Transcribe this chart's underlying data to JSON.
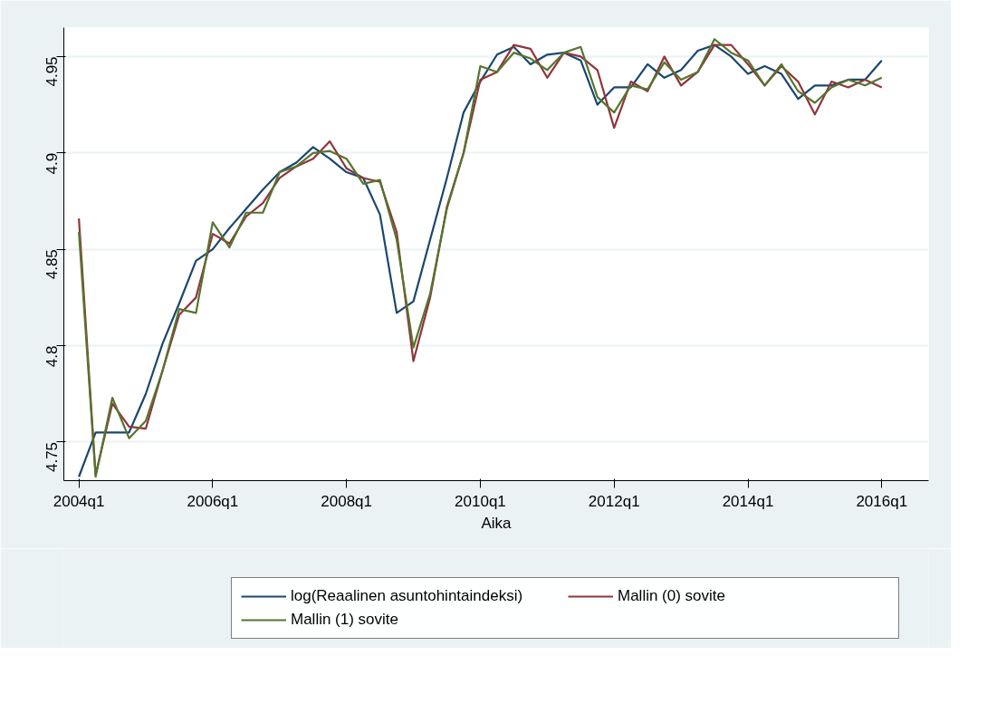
{
  "chart_data": {
    "type": "line",
    "xlabel": "Aika",
    "categories": [
      "2004q1",
      null,
      null,
      null,
      null,
      null,
      null,
      null,
      "2006q1",
      null,
      null,
      null,
      null,
      null,
      null,
      null,
      "2008q1",
      null,
      null,
      null,
      null,
      null,
      null,
      null,
      "2010q1",
      null,
      null,
      null,
      null,
      null,
      null,
      null,
      "2012q1",
      null,
      null,
      null,
      null,
      null,
      null,
      null,
      "2014q1",
      null,
      null,
      null,
      null,
      null,
      null,
      null,
      "2016q1"
    ],
    "series": [
      {
        "name": "log(Reaalinen asuntohintaindeksi)",
        "color": "#1a476f",
        "values": [
          4.732,
          4.755,
          4.755,
          4.755,
          4.775,
          4.801,
          4.822,
          4.844,
          4.85,
          4.861,
          4.871,
          4.881,
          4.89,
          4.895,
          4.903,
          4.897,
          4.89,
          4.887,
          4.868,
          4.817,
          4.823,
          4.855,
          4.887,
          4.921,
          4.937,
          4.951,
          4.955,
          4.946,
          4.951,
          4.952,
          4.948,
          4.925,
          4.934,
          4.934,
          4.946,
          4.939,
          4.943,
          4.953,
          4.956,
          4.95,
          4.941,
          4.945,
          4.941,
          4.928,
          4.935,
          4.935,
          4.938,
          4.938,
          4.948
        ]
      },
      {
        "name": "Mallin (0) sovite",
        "color": "#90353b",
        "values": [
          4.866,
          4.733,
          4.77,
          4.758,
          4.757,
          4.787,
          4.816,
          4.825,
          4.858,
          4.853,
          4.867,
          4.874,
          4.887,
          4.893,
          4.897,
          4.906,
          4.892,
          4.887,
          4.885,
          4.859,
          4.792,
          4.825,
          4.872,
          4.9,
          4.938,
          4.942,
          4.956,
          4.954,
          4.939,
          4.952,
          4.95,
          4.943,
          4.913,
          4.937,
          4.932,
          4.95,
          4.935,
          4.942,
          4.956,
          4.956,
          4.946,
          4.935,
          4.945,
          4.937,
          4.92,
          4.937,
          4.934,
          4.938,
          4.934
        ]
      },
      {
        "name": "Mallin (1) sovite",
        "color": "#55752f",
        "values": [
          4.859,
          4.732,
          4.773,
          4.752,
          4.761,
          4.787,
          4.819,
          4.817,
          4.864,
          4.851,
          4.869,
          4.869,
          4.89,
          4.893,
          4.9,
          4.901,
          4.897,
          4.884,
          4.886,
          4.855,
          4.799,
          4.827,
          4.871,
          4.9,
          4.945,
          4.942,
          4.952,
          4.949,
          4.943,
          4.952,
          4.955,
          4.929,
          4.921,
          4.935,
          4.933,
          4.947,
          4.938,
          4.942,
          4.959,
          4.952,
          4.948,
          4.935,
          4.946,
          4.932,
          4.926,
          4.934,
          4.938,
          4.935,
          4.939
        ]
      }
    ],
    "ylim": [
      4.73,
      4.965
    ],
    "yticks": [
      4.75,
      4.8,
      4.85,
      4.9,
      4.95
    ],
    "grid": "y",
    "legend": "bottom",
    "marker": "none",
    "line_style": "solid"
  }
}
